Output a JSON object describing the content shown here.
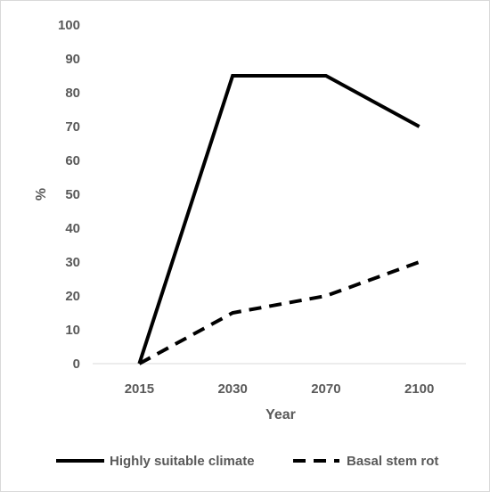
{
  "chart_data": {
    "type": "line",
    "categories": [
      "2015",
      "2030",
      "2070",
      "2100"
    ],
    "series": [
      {
        "name": "Highly suitable climate",
        "values": [
          0,
          85,
          85,
          70
        ],
        "style": "solid",
        "color": "#000000"
      },
      {
        "name": "Basal stem rot",
        "values": [
          0,
          15,
          20,
          30
        ],
        "style": "dashed",
        "color": "#000000"
      }
    ],
    "xlabel": "Year",
    "ylabel": "%",
    "ylim": [
      0,
      100
    ],
    "yticks": [
      "0",
      "10",
      "20",
      "30",
      "40",
      "50",
      "60",
      "70",
      "80",
      "90",
      "100"
    ],
    "grid": false,
    "legend": "bottom"
  }
}
